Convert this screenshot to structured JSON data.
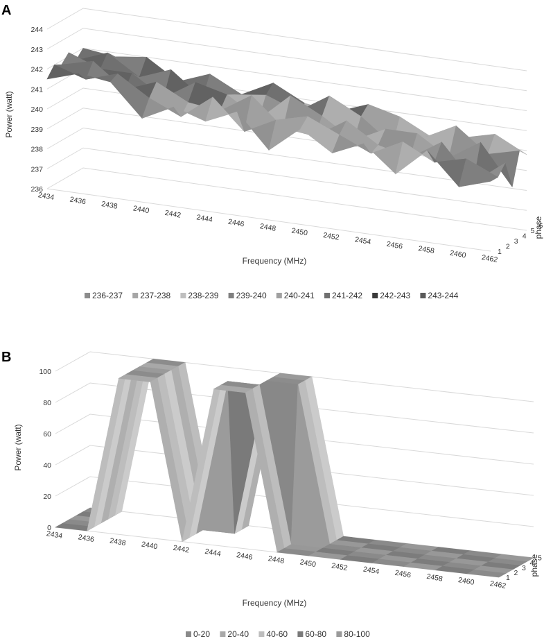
{
  "chart_data": [
    {
      "panel_label": "A",
      "type": "surface",
      "title": "",
      "xlabel": "Frequency (MHz)",
      "ylabel": "Power (watt)",
      "zlabel": "phase",
      "x_ticks": [
        "2434",
        "2436",
        "2438",
        "2440",
        "2442",
        "2444",
        "2446",
        "2448",
        "2450",
        "2452",
        "2454",
        "2456",
        "2458",
        "2460",
        "2462"
      ],
      "z_ticks": [
        "1",
        "2",
        "3",
        "4",
        "5",
        "6"
      ],
      "y_ticks": [
        "236",
        "237",
        "238",
        "239",
        "240",
        "241",
        "242",
        "243",
        "244"
      ],
      "ylim": [
        236,
        244
      ],
      "legend": [
        "236-237",
        "237-238",
        "238-239",
        "239-240",
        "240-241",
        "241-242",
        "242-243",
        "243-244"
      ],
      "legend_colors": [
        "#8c8c8c",
        "#a6a6a6",
        "#bfbfbf",
        "#7f7f7f",
        "#a0a0a0",
        "#707070",
        "#3a3a3a",
        "#5a5a5a"
      ],
      "legend_position": "bottom",
      "x_values": [
        2434,
        2436,
        2438,
        2440,
        2442,
        2444,
        2446,
        2448,
        2450,
        2452,
        2454,
        2456,
        2458,
        2460,
        2462
      ],
      "series": [
        {
          "phase": 1,
          "values": [
            241.5,
            242.0,
            241.8,
            240.2,
            241.0,
            240.5,
            241.2,
            239.5,
            240.8,
            239.8,
            240.5,
            239.2,
            240.6,
            239.0,
            239.5
          ]
        },
        {
          "phase": 2,
          "values": [
            242.0,
            241.5,
            242.0,
            241.0,
            240.3,
            241.5,
            240.0,
            240.8,
            241.2,
            240.5,
            239.8,
            240.6,
            239.8,
            240.2,
            239.5
          ]
        },
        {
          "phase": 3,
          "values": [
            241.8,
            242.2,
            241.0,
            241.6,
            240.8,
            240.6,
            241.6,
            240.2,
            240.0,
            241.0,
            240.0,
            239.6,
            240.6,
            238.8,
            240.0
          ]
        },
        {
          "phase": 4,
          "values": [
            242.2,
            241.6,
            241.6,
            240.6,
            241.6,
            241.2,
            240.2,
            241.6,
            240.8,
            239.8,
            240.6,
            240.6,
            239.6,
            240.6,
            238.6
          ]
        },
        {
          "phase": 5,
          "values": [
            241.6,
            242.2,
            241.2,
            241.8,
            240.6,
            241.0,
            241.2,
            240.6,
            241.6,
            240.8,
            239.6,
            240.2,
            241.0,
            239.8,
            240.2
          ]
        },
        {
          "phase": 6,
          "values": [
            242.0,
            241.8,
            242.0,
            241.0,
            241.6,
            240.8,
            241.6,
            240.8,
            240.6,
            241.2,
            240.8,
            240.0,
            240.2,
            240.6,
            239.8
          ]
        }
      ],
      "grid": true
    },
    {
      "panel_label": "B",
      "type": "surface",
      "title": "",
      "xlabel": "Frequency (MHz)",
      "ylabel": "Power (watt)",
      "zlabel": "phase",
      "x_ticks": [
        "2434",
        "2436",
        "2438",
        "2440",
        "2442",
        "2444",
        "2446",
        "2448",
        "2450",
        "2452",
        "2454",
        "2456",
        "2458",
        "2460",
        "2462"
      ],
      "z_ticks": [
        "1",
        "2",
        "3",
        "4",
        "5",
        "6"
      ],
      "y_ticks": [
        "0",
        "20",
        "40",
        "60",
        "80",
        "100"
      ],
      "ylim": [
        0,
        100
      ],
      "legend": [
        "0-20",
        "20-40",
        "40-60",
        "60-80",
        "80-100"
      ],
      "legend_colors": [
        "#8a8a8a",
        "#a9a9a9",
        "#bdbdbd",
        "#7a7a7a",
        "#9a9a9a"
      ],
      "legend_position": "bottom",
      "x_values": [
        2434,
        2436,
        2438,
        2440,
        2442,
        2444,
        2446,
        2448,
        2450,
        2452,
        2454,
        2456,
        2458,
        2460,
        2462
      ],
      "series": [
        {
          "phase": 1,
          "values": [
            0,
            0,
            100,
            100,
            0,
            100,
            100,
            0,
            0,
            0,
            0,
            0,
            0,
            0,
            0
          ]
        },
        {
          "phase": 2,
          "values": [
            0,
            0,
            100,
            100,
            0,
            100,
            100,
            0,
            0,
            0,
            0,
            0,
            0,
            0,
            0
          ]
        },
        {
          "phase": 3,
          "values": [
            0,
            0,
            100,
            100,
            0,
            100,
            100,
            0,
            0,
            0,
            0,
            0,
            0,
            0,
            0
          ]
        },
        {
          "phase": 4,
          "values": [
            0,
            0,
            100,
            100,
            0,
            0,
            100,
            100,
            0,
            0,
            0,
            0,
            0,
            0,
            0
          ]
        },
        {
          "phase": 5,
          "values": [
            0,
            0,
            100,
            100,
            0,
            0,
            100,
            100,
            0,
            0,
            0,
            0,
            0,
            0,
            0
          ]
        },
        {
          "phase": 6,
          "values": [
            0,
            0,
            100,
            100,
            0,
            0,
            100,
            100,
            0,
            0,
            0,
            0,
            0,
            0,
            0
          ]
        }
      ],
      "grid": true
    }
  ]
}
